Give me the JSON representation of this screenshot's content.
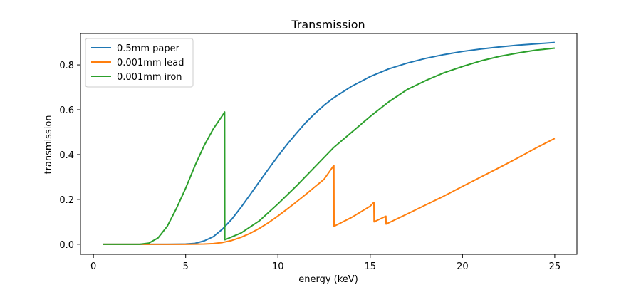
{
  "chart_data": {
    "type": "line",
    "title": "Transmission",
    "xlabel": "energy (keV)",
    "ylabel": "transmission",
    "xlim": [
      -0.7,
      26.2
    ],
    "ylim": [
      -0.045,
      0.94
    ],
    "xticks": [
      0,
      5,
      10,
      15,
      20,
      25
    ],
    "yticks": [
      0.0,
      0.2,
      0.4,
      0.6,
      0.8
    ],
    "ytick_labels": [
      "0.0",
      "0.2",
      "0.4",
      "0.6",
      "0.8"
    ],
    "grid": false,
    "legend_placement": "upper-left",
    "series": [
      {
        "name": "0.5mm paper",
        "color": "#1f77b4",
        "x": [
          0.5,
          3,
          4,
          5,
          5.5,
          6,
          6.5,
          7,
          7.5,
          8,
          8.5,
          9,
          9.5,
          10,
          10.5,
          11,
          11.5,
          12,
          12.5,
          13,
          14,
          15,
          16,
          17,
          18,
          19,
          20,
          21,
          22,
          23,
          24,
          25
        ],
        "y": [
          0.0,
          0.0,
          0.0,
          0.001,
          0.004,
          0.015,
          0.034,
          0.068,
          0.112,
          0.165,
          0.222,
          0.28,
          0.337,
          0.393,
          0.446,
          0.495,
          0.542,
          0.583,
          0.62,
          0.652,
          0.705,
          0.748,
          0.782,
          0.808,
          0.829,
          0.846,
          0.86,
          0.871,
          0.88,
          0.888,
          0.894,
          0.9
        ]
      },
      {
        "name": "0.001mm lead",
        "color": "#ff7f0e",
        "x": [
          0.5,
          3,
          4,
          5,
          6,
          6.5,
          7,
          7.5,
          8,
          8.5,
          9,
          9.5,
          10,
          10.5,
          11,
          11.5,
          12,
          12.5,
          13.03,
          13.04,
          14,
          15,
          15.2,
          15.21,
          15.85,
          15.86,
          17,
          18,
          19,
          20,
          21,
          22,
          23,
          24,
          25
        ],
        "y": [
          0.0,
          0.0,
          0.0,
          0.0,
          0.001,
          0.003,
          0.008,
          0.017,
          0.031,
          0.049,
          0.071,
          0.097,
          0.126,
          0.157,
          0.189,
          0.222,
          0.256,
          0.29,
          0.352,
          0.08,
          0.12,
          0.17,
          0.187,
          0.1,
          0.125,
          0.09,
          0.135,
          0.175,
          0.215,
          0.258,
          0.3,
          0.342,
          0.385,
          0.43,
          0.472
        ]
      },
      {
        "name": "0.001mm iron",
        "color": "#2ca02c",
        "x": [
          0.5,
          2,
          2.5,
          3,
          3.5,
          4,
          4.5,
          5,
          5.5,
          6,
          6.5,
          7,
          7.11,
          7.12,
          8,
          9,
          10,
          11,
          12,
          13,
          14,
          15,
          16,
          17,
          18,
          19,
          20,
          21,
          22,
          23,
          24,
          25
        ],
        "y": [
          0.0,
          0.0,
          0.0,
          0.005,
          0.028,
          0.08,
          0.16,
          0.25,
          0.35,
          0.44,
          0.515,
          0.575,
          0.59,
          0.02,
          0.05,
          0.105,
          0.18,
          0.26,
          0.345,
          0.43,
          0.5,
          0.57,
          0.635,
          0.69,
          0.73,
          0.765,
          0.793,
          0.818,
          0.838,
          0.853,
          0.866,
          0.875
        ]
      }
    ]
  }
}
